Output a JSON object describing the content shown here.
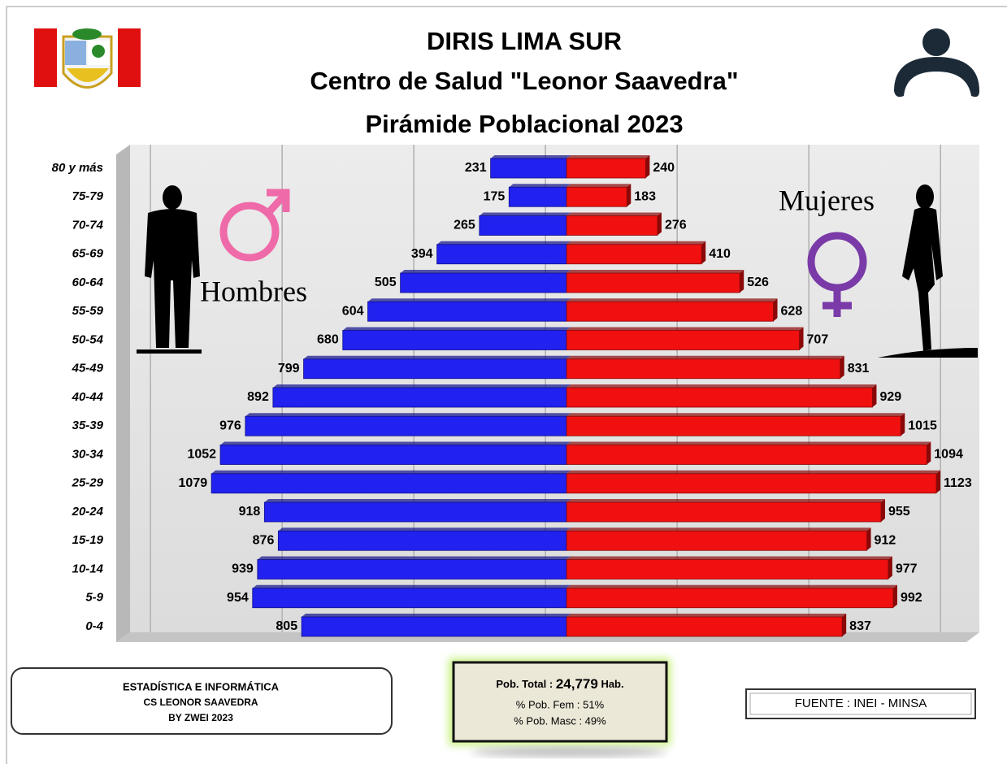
{
  "chart_data": {
    "type": "pyramid",
    "title": [
      "DIRIS LIMA SUR",
      "Centro de Salud \"Leonor Saavedra\"",
      "Pirámide Poblacional 2023"
    ],
    "categories": [
      "80 y más",
      "75-79",
      "70-74",
      "65-69",
      "60-64",
      "55-59",
      "50-54",
      "45-49",
      "40-44",
      "35-39",
      "30-34",
      "25-29",
      "20-24",
      "15-19",
      "10-14",
      "5-9",
      "0-4"
    ],
    "series": [
      {
        "name": "Hombres",
        "color": "#2121f0",
        "values": [
          231,
          175,
          265,
          394,
          505,
          604,
          680,
          799,
          892,
          976,
          1052,
          1079,
          918,
          876,
          939,
          954,
          805
        ]
      },
      {
        "name": "Mujeres",
        "color": "#f01010",
        "values": [
          240,
          183,
          276,
          410,
          526,
          628,
          707,
          831,
          929,
          1015,
          1094,
          1123,
          955,
          912,
          977,
          992,
          837
        ]
      }
    ],
    "xlim": [
      -1262,
      1318
    ],
    "xticks": [
      -1200,
      -800,
      -400,
      0,
      400,
      800,
      1200
    ],
    "grid": true
  },
  "summary": {
    "total_label": "Pob. Total :",
    "total": "24,779",
    "unit": "Hab.",
    "fem": "% Pob. Fem : 51%",
    "masc": "% Pob. Masc : 49%"
  },
  "credits": [
    "ESTADÍSTICA E INFORMÁTICA",
    "CS LEONOR SAAVEDRA",
    "BY ZWEI 2023"
  ],
  "source": "FUENTE : INEI - MINSA"
}
